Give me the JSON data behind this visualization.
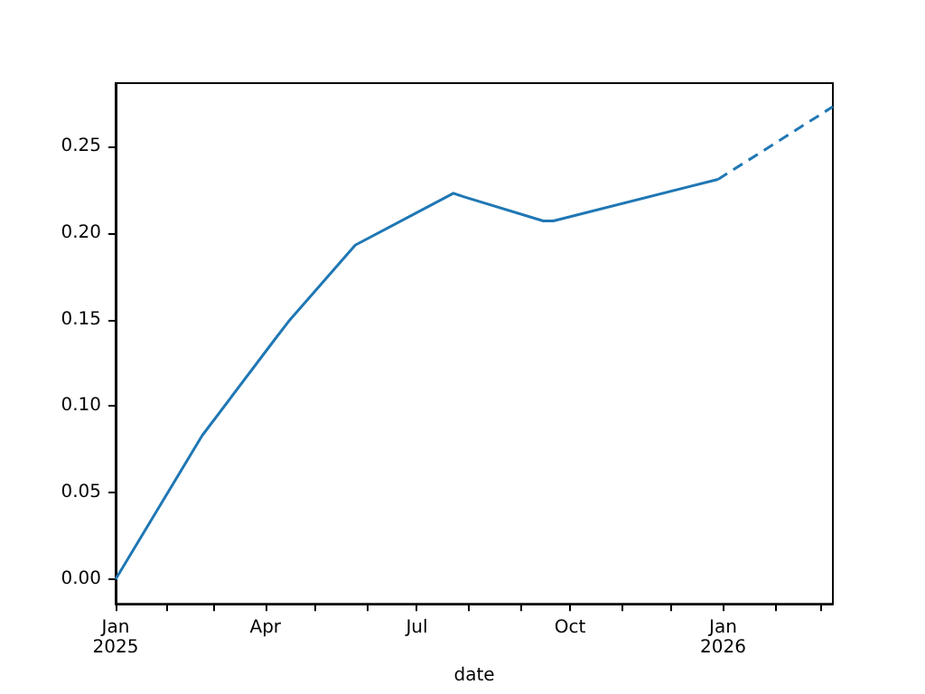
{
  "chart_data": {
    "type": "line",
    "xlabel": "date",
    "x": [
      "2025-01-01",
      "2025-02-22",
      "2025-04-07",
      "2025-04-15",
      "2025-05-25",
      "2025-07-23",
      "2025-07-29",
      "2025-09-15",
      "2025-09-21",
      "2025-12-29"
    ],
    "series": [
      {
        "color": "#1f77b4",
        "line_style": "solid",
        "values": [
          0.0,
          0.083,
          0.139,
          0.149,
          0.193,
          0.223,
          0.221,
          0.207,
          0.207,
          0.231
        ]
      },
      {
        "color": "#1f77b4",
        "line_style": "dashed",
        "x": [
          "2025-12-29",
          "2026-03-08"
        ],
        "values": [
          0.231,
          0.273
        ]
      }
    ],
    "xlim": [
      "2025-01-01",
      "2026-03-08"
    ],
    "xticks": [
      {
        "value": "2025-01-01",
        "label": "Jan\n2025"
      },
      {
        "value": "2025-02-01",
        "label": null
      },
      {
        "value": "2025-03-01",
        "label": null
      },
      {
        "value": "2025-04-01",
        "label": "Apr"
      },
      {
        "value": "2025-05-01",
        "label": null
      },
      {
        "value": "2025-06-01",
        "label": null
      },
      {
        "value": "2025-07-01",
        "label": "Jul"
      },
      {
        "value": "2025-08-01",
        "label": null
      },
      {
        "value": "2025-09-01",
        "label": null
      },
      {
        "value": "2025-10-01",
        "label": "Oct"
      },
      {
        "value": "2025-11-01",
        "label": null
      },
      {
        "value": "2025-12-01",
        "label": null
      },
      {
        "value": "2026-01-01",
        "label": "Jan\n2026"
      },
      {
        "value": "2026-02-01",
        "label": null
      },
      {
        "value": "2026-03-01",
        "label": null
      }
    ],
    "ylim": [
      -0.0142,
      0.2866
    ],
    "yticks": [
      {
        "value": 0,
        "label": "0.00"
      },
      {
        "value": 0.05,
        "label": "0.05"
      },
      {
        "value": 0.1,
        "label": "0.10"
      },
      {
        "value": 0.15,
        "label": "0.15"
      },
      {
        "value": 0.2,
        "label": "0.20"
      },
      {
        "value": 0.25,
        "label": "0.25"
      }
    ],
    "grid": false,
    "legend": false
  }
}
